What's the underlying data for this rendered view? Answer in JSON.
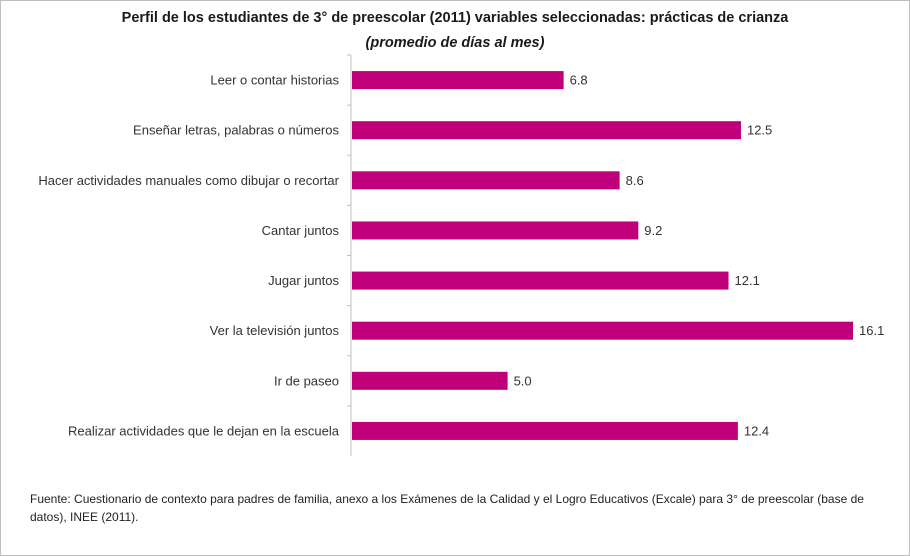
{
  "chart_data": {
    "type": "bar",
    "orientation": "horizontal",
    "title": "Perfil de los estudiantes de 3° de preescolar  (2011) variables seleccionadas: prácticas de crianza",
    "subtitle": "(promedio de días al mes)",
    "categories": [
      "Leer o contar historias",
      "Enseñar letras, palabras o números",
      "Hacer actividades manuales como dibujar o recortar",
      "Cantar juntos",
      "Jugar juntos",
      "Ver la televisión juntos",
      "Ir de paseo",
      "Realizar actividades que le dejan en la escuela"
    ],
    "values": [
      6.8,
      12.5,
      8.6,
      9.2,
      12.1,
      16.1,
      5.0,
      12.4
    ],
    "value_labels": [
      "6.8",
      "12.5",
      "8.6",
      "9.2",
      "12.1",
      "16.1",
      "5.0",
      "12.4"
    ],
    "xlim": [
      0,
      16.1
    ],
    "bar_color": "#c0007a",
    "grid": false,
    "legend": "none"
  },
  "footnote": "Fuente:  Cuestionario de contexto para padres de familia, anexo a los Exámenes de la Calidad y el Logro Educativos (Excale) para 3° de preescolar (base de datos), INEE (2011)."
}
